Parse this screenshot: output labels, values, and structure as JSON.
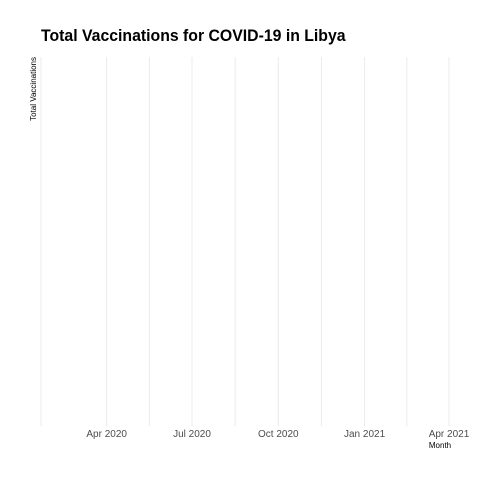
{
  "chart_data": {
    "type": "line",
    "title": "Total Vaccinations for COVID-19 in Libya",
    "xlabel": "Month",
    "ylabel": "Total Vaccinations",
    "x_axis": {
      "type": "date",
      "range": [
        "2020-01-22",
        "2021-04-01"
      ],
      "ticks": [
        {
          "date": "2020-04-01",
          "label": "Apr 2020"
        },
        {
          "date": "2020-07-01",
          "label": "Jul 2020"
        },
        {
          "date": "2020-10-01",
          "label": "Oct 2020"
        },
        {
          "date": "2021-01-01",
          "label": "Jan 2021"
        },
        {
          "date": "2021-04-01",
          "label": "Apr 2021"
        }
      ]
    },
    "y_axis": {
      "ticks": []
    },
    "series": [],
    "grid": true,
    "legend": "none",
    "colors": {
      "grid": "#ebebeb",
      "tick_text": "#4d4d4d",
      "text": "#000000"
    }
  }
}
